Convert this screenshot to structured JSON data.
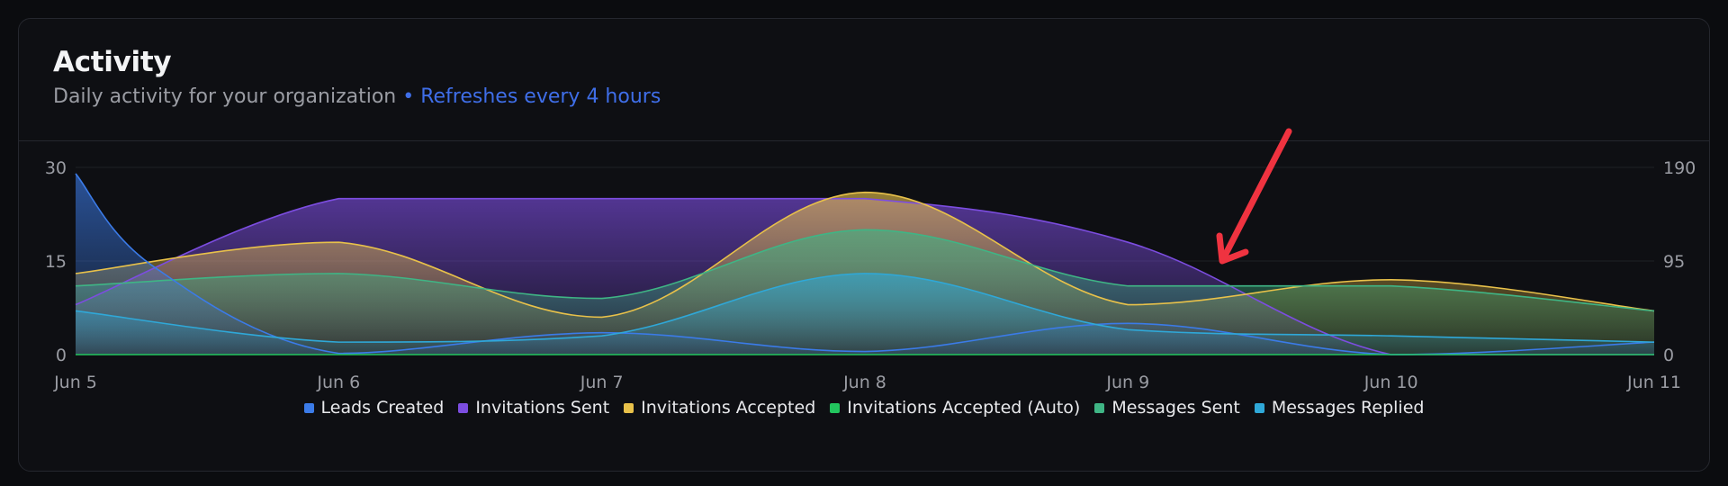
{
  "card": {
    "title": "Activity",
    "subtitle": "Daily activity for your organization",
    "refresh_note": "• Refreshes every 4 hours"
  },
  "colors": {
    "accent": "#3f6ee8",
    "arrow": "#ef3340"
  },
  "chart_data": {
    "type": "area",
    "title": "",
    "xlabel": "",
    "ylabel": "",
    "x": [
      "Jun 5",
      "Jun 6",
      "Jun 7",
      "Jun 8",
      "Jun 9",
      "Jun 10",
      "Jun 11"
    ],
    "y_left": {
      "ticks": [
        "0",
        "15",
        "30"
      ],
      "range": [
        0,
        30
      ]
    },
    "y_right": {
      "ticks": [
        "0",
        "95",
        "190"
      ],
      "range": [
        0,
        190
      ]
    },
    "grid": true,
    "legend_position": "bottom-center",
    "series": [
      {
        "name": "Leads Created",
        "color": "#3b7be8",
        "axis": "left",
        "points": [
          [
            0,
            29
          ],
          [
            0.3,
            14
          ],
          [
            1.0,
            0.2
          ],
          [
            2.0,
            3.5
          ],
          [
            3.0,
            0.5
          ],
          [
            4.0,
            5
          ],
          [
            5.0,
            0
          ],
          [
            6.0,
            2
          ]
        ]
      },
      {
        "name": "Invitations Sent",
        "color": "#7c4de0",
        "axis": "left",
        "points": [
          [
            0,
            8
          ],
          [
            1.0,
            25
          ],
          [
            2.0,
            25
          ],
          [
            3.0,
            25
          ],
          [
            4.0,
            18
          ],
          [
            5.0,
            0
          ],
          [
            6.0,
            0
          ]
        ]
      },
      {
        "name": "Invitations Accepted",
        "color": "#e8c14a",
        "axis": "left",
        "points": [
          [
            0,
            13
          ],
          [
            1.0,
            18
          ],
          [
            2.0,
            6
          ],
          [
            3.0,
            26
          ],
          [
            4.0,
            8
          ],
          [
            5.0,
            12
          ],
          [
            6.0,
            7
          ]
        ]
      },
      {
        "name": "Invitations Accepted (Auto)",
        "color": "#22c55e",
        "axis": "left",
        "points": [
          [
            0,
            0
          ],
          [
            1.0,
            0
          ],
          [
            2.0,
            0
          ],
          [
            3.0,
            0
          ],
          [
            4.0,
            0
          ],
          [
            5.0,
            0
          ],
          [
            6.0,
            0
          ]
        ]
      },
      {
        "name": "Messages Sent",
        "color": "#3fb585",
        "axis": "left",
        "points": [
          [
            0,
            11
          ],
          [
            1.0,
            13
          ],
          [
            2.0,
            9
          ],
          [
            3.0,
            20
          ],
          [
            4.0,
            11
          ],
          [
            5.0,
            11
          ],
          [
            6.0,
            7
          ]
        ]
      },
      {
        "name": "Messages Replied",
        "color": "#2fa8d8",
        "axis": "left",
        "points": [
          [
            0,
            7
          ],
          [
            1.0,
            2
          ],
          [
            2.0,
            3
          ],
          [
            3.0,
            13
          ],
          [
            4.0,
            4
          ],
          [
            5.0,
            3
          ],
          [
            6.0,
            2
          ]
        ]
      }
    ]
  }
}
